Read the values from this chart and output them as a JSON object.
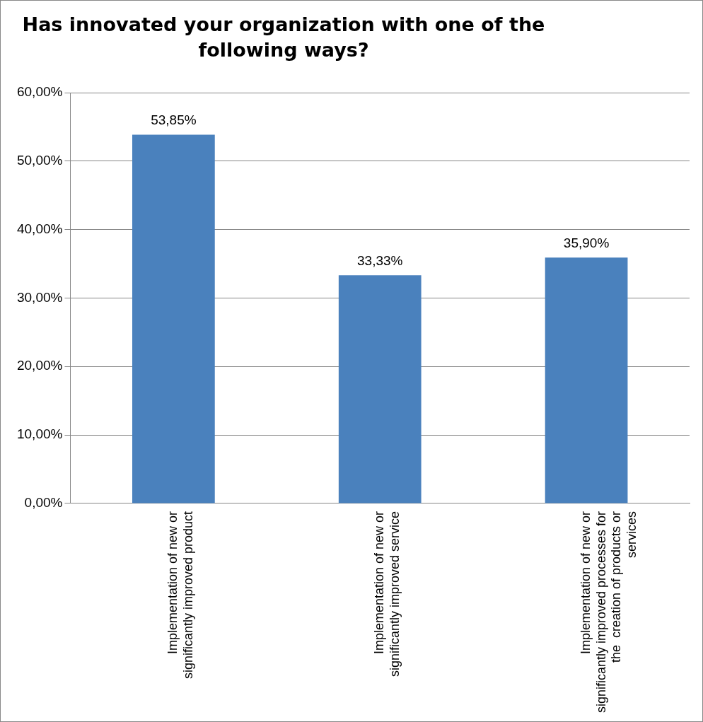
{
  "chart_data": {
    "type": "bar",
    "title": "Has innovated your organization with one of the following ways?",
    "categories": [
      "Implementation of new or significantly improved product",
      "Implementation of new or significantly improved service",
      "Implementation of new or significantly improved processes for the  creation of products or services"
    ],
    "values": [
      53.85,
      33.33,
      35.9
    ],
    "value_labels": [
      "53,85%",
      "33,33%",
      "35,90%"
    ],
    "color": "#4a81bd",
    "ylim": [
      0,
      60
    ],
    "yticks": [
      {
        "value": 0,
        "label": "0,00%"
      },
      {
        "value": 10,
        "label": "10,00%"
      },
      {
        "value": 20,
        "label": "20,00%"
      },
      {
        "value": 30,
        "label": "30,00%"
      },
      {
        "value": 40,
        "label": "40,00%"
      },
      {
        "value": 50,
        "label": "50,00%"
      },
      {
        "value": 60,
        "label": "60,00%"
      }
    ],
    "grid": "y"
  }
}
